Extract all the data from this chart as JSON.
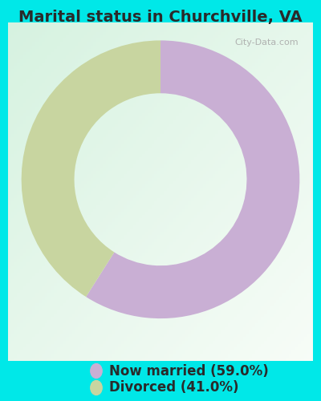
{
  "title": "Marital status in Churchville, VA",
  "values": [
    59.0,
    41.0
  ],
  "labels": [
    "Now married (59.0%)",
    "Divorced (41.0%)"
  ],
  "colors": [
    "#c9afd4",
    "#c8d5a0"
  ],
  "background_outer": "#00e8e8",
  "background_inner_color1": "#d8f0e0",
  "background_inner_color2": "#f5faf8",
  "title_fontsize": 14,
  "legend_fontsize": 12,
  "start_angle": 90,
  "watermark": "City-Data.com",
  "watermark_fontsize": 8
}
